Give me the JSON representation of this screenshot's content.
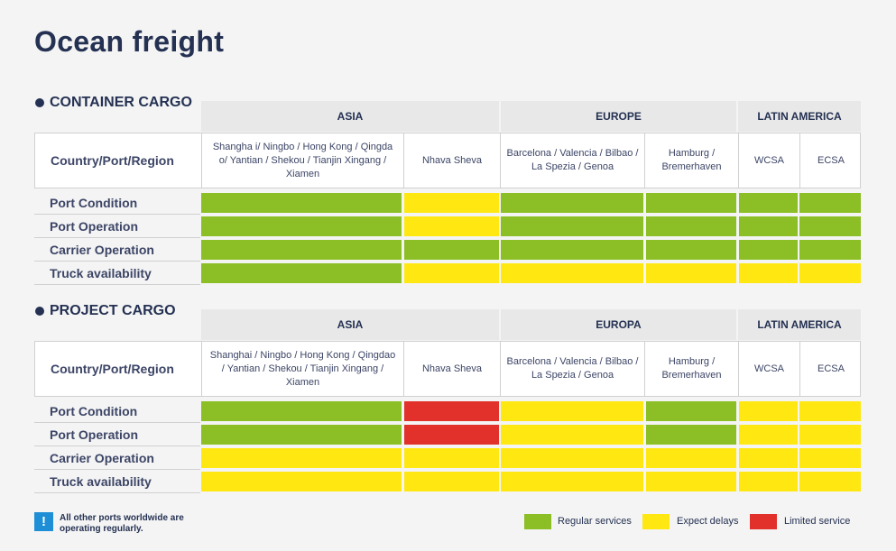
{
  "title": "Ocean freight",
  "colors": {
    "green": "#8cbf26",
    "yellow": "#ffe812",
    "red": "#e2312b"
  },
  "sections": [
    {
      "label": "CONTAINER CARGO",
      "regions": [
        "ASIA",
        "EUROPE",
        "LATIN AMERICA"
      ],
      "row_header": "Country/Port/Region",
      "columns": [
        "Shangha i/ Ningbo / Hong Kong / Qingda o/ Yantian / Shekou / Tianjin Xingang / Xiamen",
        "Nhava Sheva",
        "Barcelona / Valencia / Bilbao / La Spezia / Genoa",
        "Hamburg / Bremerhaven",
        "WCSA",
        "ECSA"
      ],
      "rows": [
        {
          "label": "Port Condition",
          "status": [
            "green",
            "yellow",
            "green",
            "green",
            "green",
            "green"
          ]
        },
        {
          "label": "Port Operation",
          "status": [
            "green",
            "yellow",
            "green",
            "green",
            "green",
            "green"
          ]
        },
        {
          "label": "Carrier Operation",
          "status": [
            "green",
            "green",
            "green",
            "green",
            "green",
            "green"
          ]
        },
        {
          "label": "Truck availability",
          "status": [
            "green",
            "yellow",
            "yellow",
            "yellow",
            "yellow",
            "yellow"
          ]
        }
      ]
    },
    {
      "label": "PROJECT CARGO",
      "regions": [
        "ASIA",
        "EUROPA",
        "LATIN AMERICA"
      ],
      "row_header": "Country/Port/Region",
      "columns": [
        "Shanghai / Ningbo / Hong Kong / Qingdao / Yantian / Shekou / Tianjin Xingang / Xiamen",
        "Nhava Sheva",
        "Barcelona / Valencia / Bilbao / La Spezia / Genoa",
        "Hamburg / Bremerhaven",
        "WCSA",
        "ECSA"
      ],
      "rows": [
        {
          "label": "Port Condition",
          "status": [
            "green",
            "red",
            "yellow",
            "green",
            "yellow",
            "yellow"
          ]
        },
        {
          "label": "Port Operation",
          "status": [
            "green",
            "red",
            "yellow",
            "green",
            "yellow",
            "yellow"
          ]
        },
        {
          "label": "Carrier Operation",
          "status": [
            "yellow",
            "yellow",
            "yellow",
            "yellow",
            "yellow",
            "yellow"
          ]
        },
        {
          "label": "Truck availability",
          "status": [
            "yellow",
            "yellow",
            "yellow",
            "yellow",
            "yellow",
            "yellow"
          ]
        }
      ]
    }
  ],
  "note": {
    "icon": "exclamation-icon",
    "text": "All other ports worldwide are operating regularly."
  },
  "legend": [
    {
      "color": "green",
      "label": "Regular services"
    },
    {
      "color": "yellow",
      "label": "Expect delays"
    },
    {
      "color": "red",
      "label": "Limited service"
    }
  ]
}
